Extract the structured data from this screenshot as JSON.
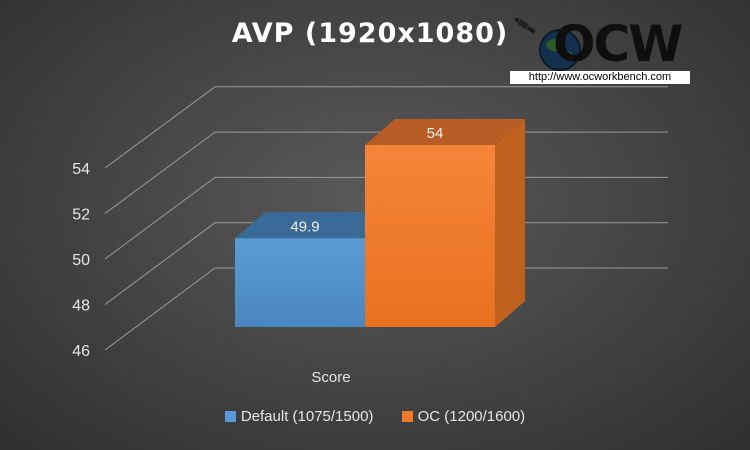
{
  "chart_data": {
    "type": "bar",
    "style": "3d-clustered-column",
    "title": "AVP (1920x1080)",
    "categories": [
      "Score"
    ],
    "series": [
      {
        "name": "Default (1075/1500)",
        "values": [
          49.9
        ],
        "color": "#5b9bd5"
      },
      {
        "name": "OC (1200/1600)",
        "values": [
          54
        ],
        "color": "#f07a2a"
      }
    ],
    "ylim": [
      46,
      54
    ],
    "yticks": [
      "46",
      "48",
      "50",
      "52",
      "54"
    ],
    "data_labels": [
      "49.9",
      "54"
    ],
    "grid": true,
    "legend_position": "bottom"
  },
  "watermark": {
    "logo_text": "OCW",
    "url": "http://www.ocworkbench.com"
  },
  "colors": {
    "background": "#474747",
    "gridline": "#9a9a9a",
    "text": "#e6e6e6"
  }
}
